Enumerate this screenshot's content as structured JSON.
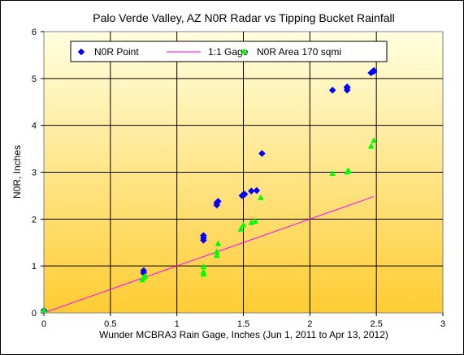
{
  "chart_data": {
    "type": "scatter",
    "title": "Palo Verde Valley, AZ N0R Radar vs Tipping Bucket Rainfall",
    "xlabel": "Wunder MCBRA3 Rain Gage, Inches (Jun 1, 2011 to Apr 13, 2012)",
    "ylabel": "N0R, Inches",
    "xlim": [
      0,
      3
    ],
    "ylim": [
      0,
      6
    ],
    "xticks": [
      "0",
      "0.5",
      "1",
      "1.5",
      "2",
      "2.5",
      "3"
    ],
    "yticks": [
      "0",
      "1",
      "2",
      "3",
      "4",
      "5",
      "6"
    ],
    "grid": true,
    "legend_position": "top-left",
    "background_gradient": [
      "#ffffe0",
      "#ffcc33"
    ],
    "series": [
      {
        "name": "N0R Point",
        "marker": "diamond",
        "color": "#0000ff",
        "points": [
          [
            0.0,
            0.05
          ],
          [
            0.75,
            0.85
          ],
          [
            0.75,
            0.9
          ],
          [
            1.2,
            1.55
          ],
          [
            1.2,
            1.6
          ],
          [
            1.2,
            1.65
          ],
          [
            1.3,
            2.3
          ],
          [
            1.3,
            2.35
          ],
          [
            1.31,
            2.38
          ],
          [
            1.49,
            2.5
          ],
          [
            1.5,
            2.52
          ],
          [
            1.51,
            2.53
          ],
          [
            1.56,
            2.6
          ],
          [
            1.6,
            2.61
          ],
          [
            1.64,
            3.4
          ],
          [
            2.17,
            4.75
          ],
          [
            2.28,
            4.75
          ],
          [
            2.28,
            4.8
          ],
          [
            2.28,
            4.82
          ],
          [
            2.46,
            5.12
          ],
          [
            2.48,
            5.15
          ],
          [
            2.48,
            5.17
          ]
        ]
      },
      {
        "name": "1:1 Gage",
        "marker": "line",
        "color": "#ff00ff",
        "points": [
          [
            0.0,
            0.0
          ],
          [
            2.48,
            2.48
          ]
        ]
      },
      {
        "name": "N0R Area 170 sqmi",
        "marker": "triangle",
        "color": "#00ff00",
        "points": [
          [
            0.0,
            0.05
          ],
          [
            0.74,
            0.7
          ],
          [
            0.75,
            0.75
          ],
          [
            0.76,
            0.78
          ],
          [
            1.2,
            0.82
          ],
          [
            1.2,
            0.87
          ],
          [
            1.2,
            0.98
          ],
          [
            1.3,
            1.22
          ],
          [
            1.3,
            1.3
          ],
          [
            1.31,
            1.47
          ],
          [
            1.48,
            1.78
          ],
          [
            1.5,
            1.87
          ],
          [
            1.56,
            1.92
          ],
          [
            1.59,
            1.95
          ],
          [
            1.63,
            2.45
          ],
          [
            2.17,
            2.97
          ],
          [
            2.28,
            3.0
          ],
          [
            2.29,
            3.03
          ],
          [
            2.46,
            3.55
          ],
          [
            2.48,
            3.67
          ]
        ]
      }
    ]
  }
}
